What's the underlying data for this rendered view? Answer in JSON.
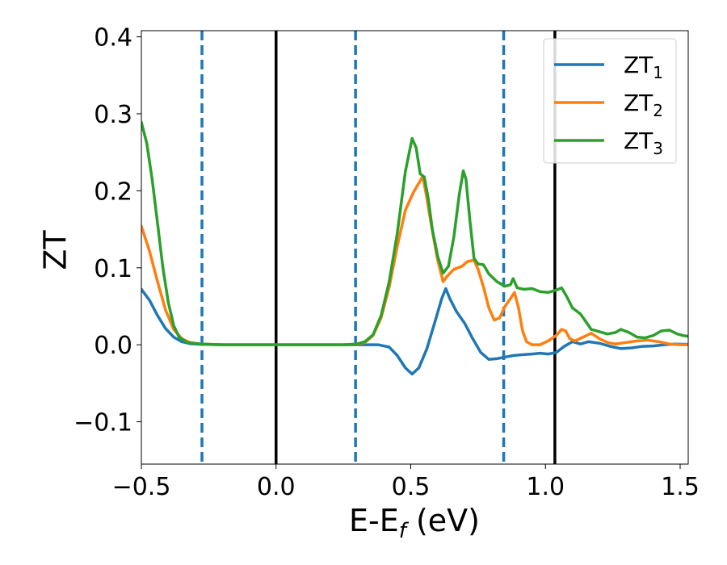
{
  "chart_data": {
    "type": "line",
    "title": "",
    "xlabel": "E-E_f (eV)",
    "xlabel_parts": {
      "main": "E-E",
      "sub": "f",
      "rest": " (eV)"
    },
    "ylabel": "ZT",
    "xlim": [
      -0.5,
      1.53
    ],
    "ylim": [
      -0.155,
      0.408
    ],
    "xticks": [
      -0.5,
      0.0,
      0.5,
      1.0,
      1.5
    ],
    "xtick_labels": [
      "−0.5",
      "0.0",
      "0.5",
      "1.0",
      "1.5"
    ],
    "yticks": [
      -0.1,
      0.0,
      0.1,
      0.2,
      0.3,
      0.4
    ],
    "ytick_labels": [
      "−0.1",
      "0.0",
      "0.1",
      "0.2",
      "0.3",
      "0.4"
    ],
    "grid": false,
    "legend_position": "top-right",
    "vlines_solid": [
      0.0,
      1.035
    ],
    "vlines_dashed": [
      -0.275,
      0.295,
      0.845
    ],
    "vline_solid_color": "#000000",
    "vline_dashed_color": "#1f77b4",
    "series": [
      {
        "name": "ZT1",
        "label_main": "ZT",
        "label_sub": "1",
        "color": "#1f77b4",
        "points": [
          [
            -0.5,
            0.072
          ],
          [
            -0.47,
            0.058
          ],
          [
            -0.44,
            0.038
          ],
          [
            -0.41,
            0.021
          ],
          [
            -0.38,
            0.01
          ],
          [
            -0.35,
            0.004
          ],
          [
            -0.32,
            0.0015
          ],
          [
            -0.28,
            0.0005
          ],
          [
            -0.2,
            0.0
          ],
          [
            0.0,
            0.0
          ],
          [
            0.3,
            0.0
          ],
          [
            0.38,
            0.0
          ],
          [
            0.42,
            -0.003
          ],
          [
            0.45,
            -0.014
          ],
          [
            0.48,
            -0.03
          ],
          [
            0.505,
            -0.038
          ],
          [
            0.53,
            -0.03
          ],
          [
            0.56,
            -0.005
          ],
          [
            0.59,
            0.03
          ],
          [
            0.615,
            0.06
          ],
          [
            0.63,
            0.073
          ],
          [
            0.645,
            0.06
          ],
          [
            0.67,
            0.043
          ],
          [
            0.7,
            0.028
          ],
          [
            0.73,
            0.008
          ],
          [
            0.76,
            -0.01
          ],
          [
            0.79,
            -0.019
          ],
          [
            0.82,
            -0.018
          ],
          [
            0.85,
            -0.016
          ],
          [
            0.88,
            -0.014
          ],
          [
            0.91,
            -0.013
          ],
          [
            0.95,
            -0.012
          ],
          [
            0.98,
            -0.011
          ],
          [
            1.01,
            -0.012
          ],
          [
            1.04,
            -0.01
          ],
          [
            1.07,
            -0.002
          ],
          [
            1.1,
            0.004
          ],
          [
            1.13,
            0.001
          ],
          [
            1.16,
            0.004
          ],
          [
            1.2,
            0.002
          ],
          [
            1.24,
            -0.002
          ],
          [
            1.28,
            -0.005
          ],
          [
            1.32,
            -0.004
          ],
          [
            1.36,
            -0.002
          ],
          [
            1.4,
            -0.0015
          ],
          [
            1.44,
            0.0
          ],
          [
            1.48,
            0.001
          ],
          [
            1.53,
            0.0005
          ]
        ]
      },
      {
        "name": "ZT2",
        "label_main": "ZT",
        "label_sub": "2",
        "color": "#ff7f0e",
        "points": [
          [
            -0.5,
            0.154
          ],
          [
            -0.47,
            0.122
          ],
          [
            -0.44,
            0.082
          ],
          [
            -0.41,
            0.045
          ],
          [
            -0.38,
            0.02
          ],
          [
            -0.35,
            0.008
          ],
          [
            -0.32,
            0.003
          ],
          [
            -0.28,
            0.001
          ],
          [
            -0.2,
            0.0
          ],
          [
            0.0,
            0.0
          ],
          [
            0.25,
            0.0
          ],
          [
            0.3,
            0.0008
          ],
          [
            0.33,
            0.003
          ],
          [
            0.36,
            0.012
          ],
          [
            0.39,
            0.035
          ],
          [
            0.42,
            0.075
          ],
          [
            0.45,
            0.128
          ],
          [
            0.48,
            0.175
          ],
          [
            0.51,
            0.198
          ],
          [
            0.53,
            0.21
          ],
          [
            0.545,
            0.219
          ],
          [
            0.56,
            0.19
          ],
          [
            0.58,
            0.148
          ],
          [
            0.6,
            0.11
          ],
          [
            0.62,
            0.082
          ],
          [
            0.635,
            0.089
          ],
          [
            0.66,
            0.098
          ],
          [
            0.69,
            0.102
          ],
          [
            0.71,
            0.108
          ],
          [
            0.735,
            0.11
          ],
          [
            0.75,
            0.098
          ],
          [
            0.77,
            0.075
          ],
          [
            0.79,
            0.048
          ],
          [
            0.81,
            0.032
          ],
          [
            0.83,
            0.035
          ],
          [
            0.85,
            0.05
          ],
          [
            0.87,
            0.06
          ],
          [
            0.885,
            0.068
          ],
          [
            0.9,
            0.048
          ],
          [
            0.915,
            0.018
          ],
          [
            0.93,
            0.004
          ],
          [
            0.95,
            0.0
          ],
          [
            0.98,
            0.0
          ],
          [
            1.01,
            0.005
          ],
          [
            1.04,
            0.012
          ],
          [
            1.06,
            0.02
          ],
          [
            1.075,
            0.018
          ],
          [
            1.09,
            0.008
          ],
          [
            1.11,
            0.005
          ],
          [
            1.14,
            0.01
          ],
          [
            1.17,
            0.015
          ],
          [
            1.2,
            0.008
          ],
          [
            1.23,
            0.003
          ],
          [
            1.26,
            0.001
          ],
          [
            1.3,
            0.003
          ],
          [
            1.34,
            0.005
          ],
          [
            1.38,
            0.006
          ],
          [
            1.42,
            0.004
          ],
          [
            1.46,
            0.001
          ],
          [
            1.5,
            0.0
          ],
          [
            1.53,
            0.0
          ]
        ]
      },
      {
        "name": "ZT3",
        "label_main": "ZT",
        "label_sub": "3",
        "color": "#2ca02c",
        "points": [
          [
            -0.5,
            0.289
          ],
          [
            -0.48,
            0.262
          ],
          [
            -0.46,
            0.215
          ],
          [
            -0.44,
            0.158
          ],
          [
            -0.42,
            0.1
          ],
          [
            -0.4,
            0.055
          ],
          [
            -0.38,
            0.025
          ],
          [
            -0.36,
            0.01
          ],
          [
            -0.33,
            0.003
          ],
          [
            -0.28,
            0.001
          ],
          [
            -0.2,
            0.0
          ],
          [
            0.0,
            0.0
          ],
          [
            0.25,
            0.0
          ],
          [
            0.3,
            0.001
          ],
          [
            0.33,
            0.004
          ],
          [
            0.36,
            0.013
          ],
          [
            0.39,
            0.038
          ],
          [
            0.42,
            0.082
          ],
          [
            0.45,
            0.145
          ],
          [
            0.48,
            0.225
          ],
          [
            0.505,
            0.268
          ],
          [
            0.52,
            0.256
          ],
          [
            0.535,
            0.222
          ],
          [
            0.55,
            0.218
          ],
          [
            0.565,
            0.19
          ],
          [
            0.58,
            0.15
          ],
          [
            0.6,
            0.115
          ],
          [
            0.62,
            0.093
          ],
          [
            0.64,
            0.102
          ],
          [
            0.66,
            0.14
          ],
          [
            0.68,
            0.195
          ],
          [
            0.695,
            0.226
          ],
          [
            0.705,
            0.215
          ],
          [
            0.72,
            0.16
          ],
          [
            0.735,
            0.112
          ],
          [
            0.75,
            0.105
          ],
          [
            0.77,
            0.104
          ],
          [
            0.79,
            0.092
          ],
          [
            0.82,
            0.082
          ],
          [
            0.85,
            0.076
          ],
          [
            0.87,
            0.078
          ],
          [
            0.88,
            0.086
          ],
          [
            0.895,
            0.074
          ],
          [
            0.92,
            0.072
          ],
          [
            0.95,
            0.073
          ],
          [
            0.98,
            0.069
          ],
          [
            1.01,
            0.068
          ],
          [
            1.04,
            0.071
          ],
          [
            1.06,
            0.074
          ],
          [
            1.08,
            0.062
          ],
          [
            1.1,
            0.048
          ],
          [
            1.13,
            0.04
          ],
          [
            1.15,
            0.03
          ],
          [
            1.17,
            0.02
          ],
          [
            1.2,
            0.017
          ],
          [
            1.23,
            0.014
          ],
          [
            1.26,
            0.016
          ],
          [
            1.28,
            0.02
          ],
          [
            1.31,
            0.016
          ],
          [
            1.34,
            0.01
          ],
          [
            1.37,
            0.009
          ],
          [
            1.4,
            0.012
          ],
          [
            1.43,
            0.018
          ],
          [
            1.46,
            0.019
          ],
          [
            1.49,
            0.014
          ],
          [
            1.51,
            0.012
          ],
          [
            1.53,
            0.011
          ]
        ]
      }
    ]
  }
}
